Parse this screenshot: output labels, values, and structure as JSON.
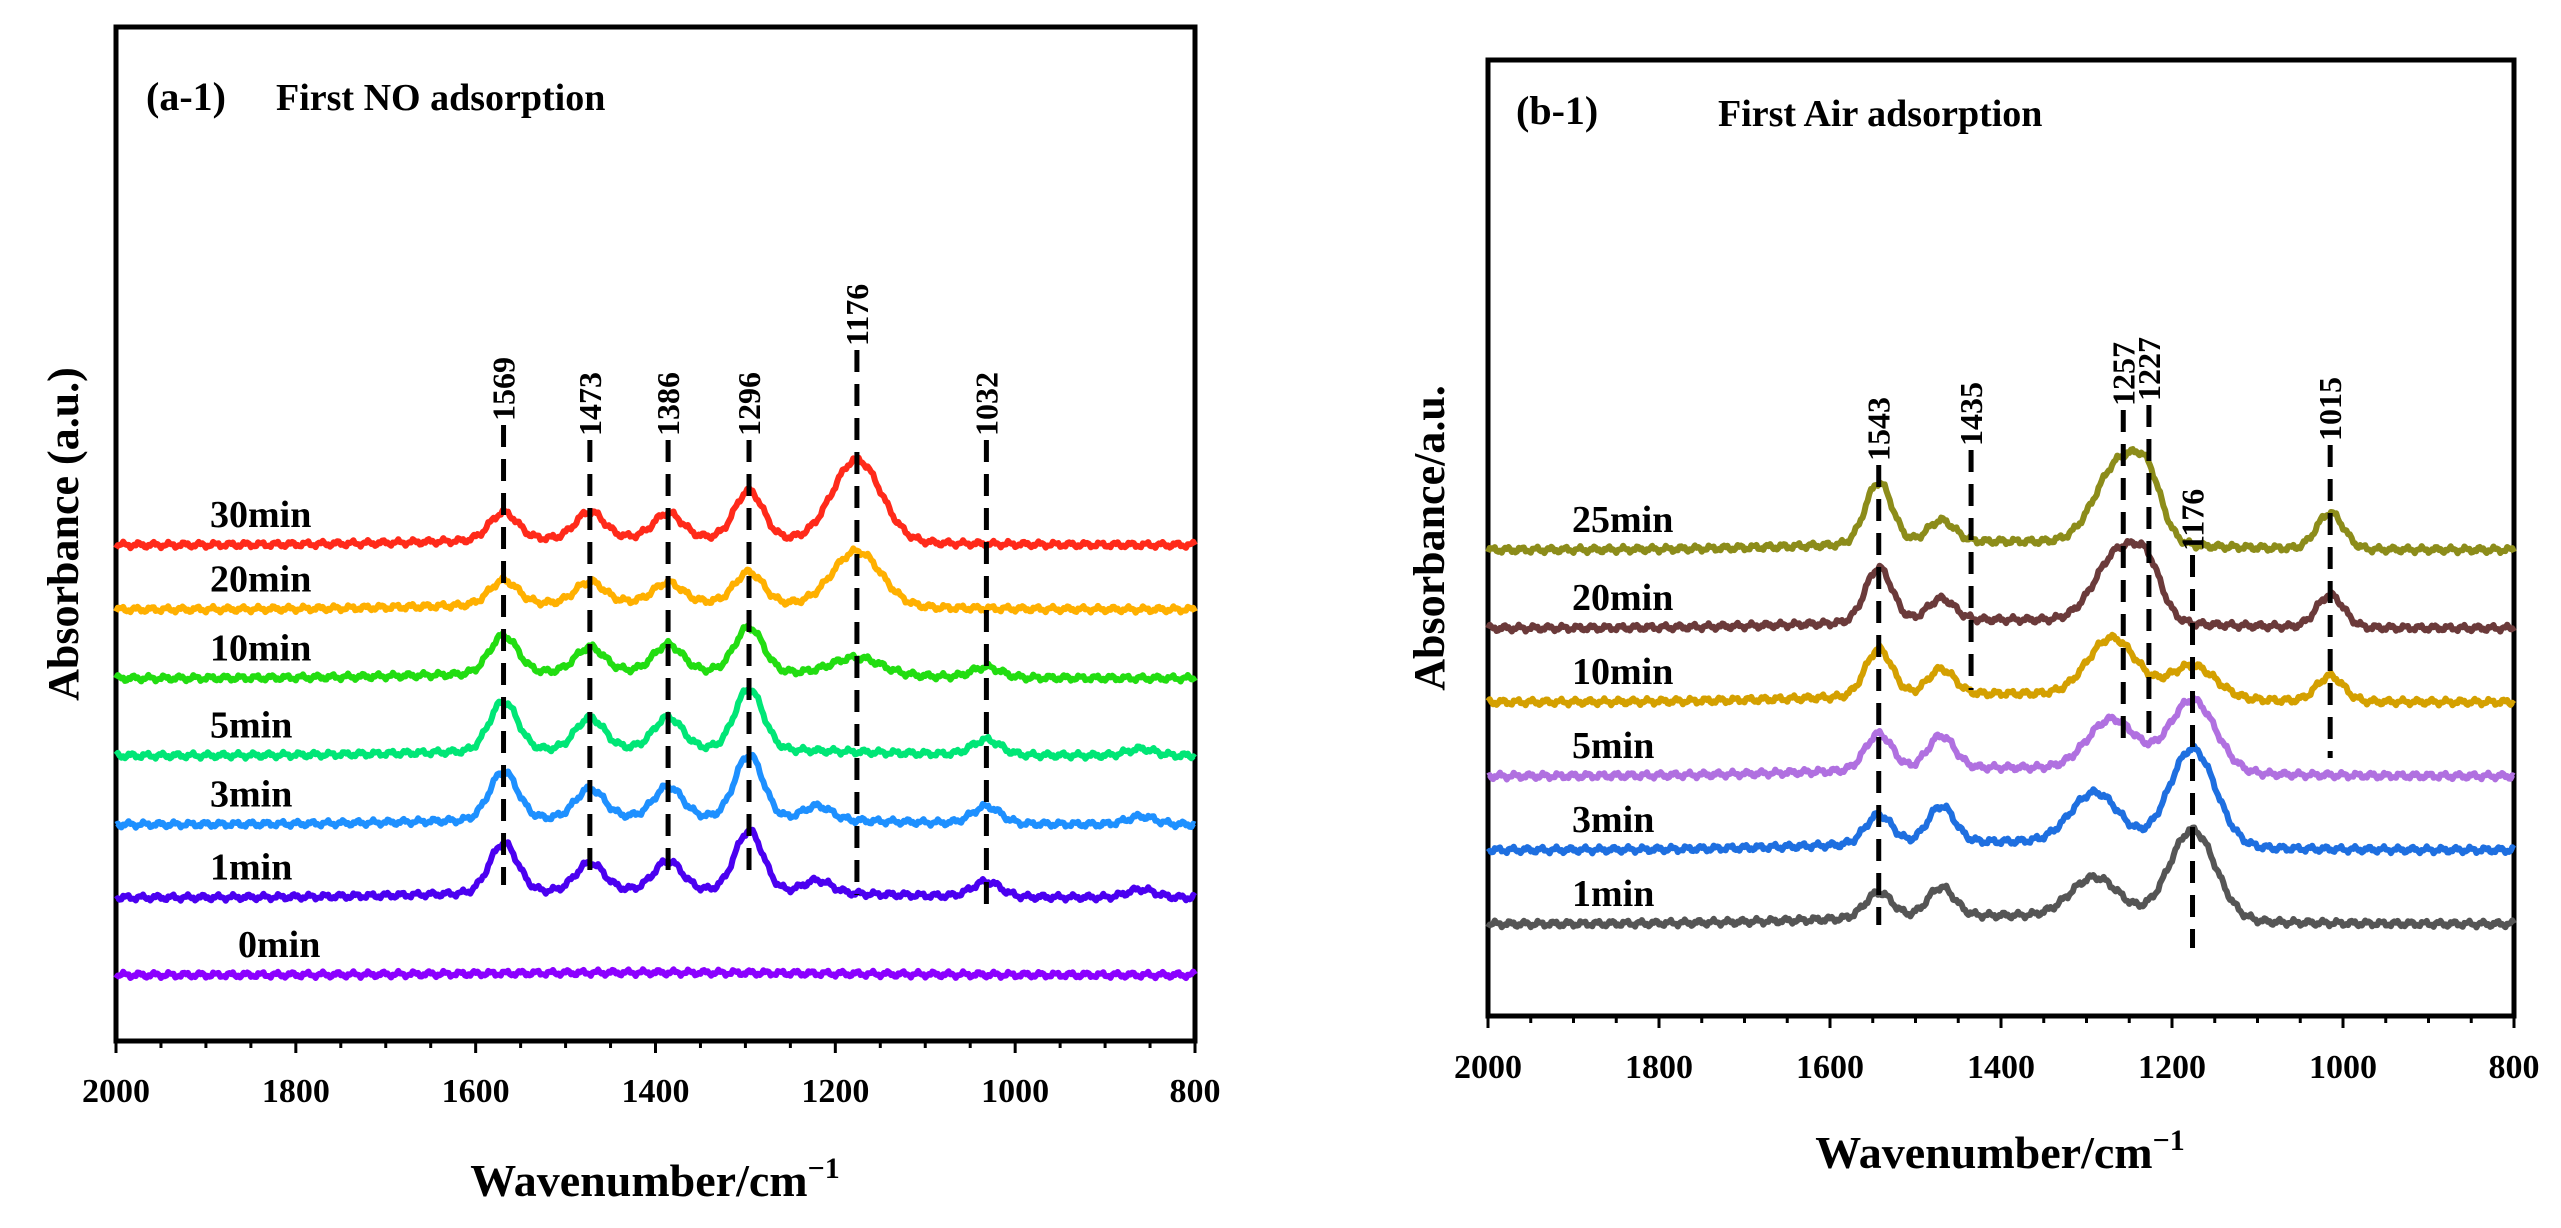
{
  "chart_data": [
    {
      "type": "line",
      "panel": "a-1",
      "panel_label": "(a-1)",
      "title": "First NO adsorption",
      "xlabel": "Wavenumber/cm",
      "xlabel_sup": "−1",
      "ylabel": "Absorbance (a.u.)",
      "xlim": [
        2000,
        800
      ],
      "xticks": [
        "2000",
        "1800",
        "1600",
        "1400",
        "1200",
        "1000",
        "800"
      ],
      "grid": false,
      "legend": "inline labels",
      "peak_lines": [
        {
          "label": "1569",
          "wavenumber": 1569
        },
        {
          "label": "1473",
          "wavenumber": 1473
        },
        {
          "label": "1386",
          "wavenumber": 1386
        },
        {
          "label": "1296",
          "wavenumber": 1296
        },
        {
          "label": "1176",
          "wavenumber": 1176
        },
        {
          "label": "1032",
          "wavenumber": 1032
        }
      ],
      "series": [
        {
          "name": "0min",
          "color": "#8B00FF",
          "baseline": 0.0,
          "peaks": []
        },
        {
          "name": "1min",
          "color": "#4B00F0",
          "baseline": 0.9,
          "peaks": [
            {
              "x": 1569,
              "h": 0.72
            },
            {
              "x": 1473,
              "h": 0.4
            },
            {
              "x": 1386,
              "h": 0.42
            },
            {
              "x": 1296,
              "h": 0.88
            },
            {
              "x": 1220,
              "h": 0.18
            },
            {
              "x": 1032,
              "h": 0.22
            },
            {
              "x": 860,
              "h": 0.12
            }
          ]
        },
        {
          "name": "3min",
          "color": "#1E90FF",
          "baseline": 1.75,
          "peaks": [
            {
              "x": 1569,
              "h": 0.7
            },
            {
              "x": 1473,
              "h": 0.42
            },
            {
              "x": 1386,
              "h": 0.44
            },
            {
              "x": 1296,
              "h": 0.92
            },
            {
              "x": 1220,
              "h": 0.2
            },
            {
              "x": 1032,
              "h": 0.25
            },
            {
              "x": 860,
              "h": 0.12
            }
          ]
        },
        {
          "name": "5min",
          "color": "#00E676",
          "baseline": 2.55,
          "peaks": [
            {
              "x": 1569,
              "h": 0.72
            },
            {
              "x": 1473,
              "h": 0.45
            },
            {
              "x": 1386,
              "h": 0.45
            },
            {
              "x": 1296,
              "h": 0.88
            },
            {
              "x": 1032,
              "h": 0.22
            },
            {
              "x": 860,
              "h": 0.1
            }
          ]
        },
        {
          "name": "10min",
          "color": "#22DD11",
          "baseline": 3.45,
          "peaks": [
            {
              "x": 1569,
              "h": 0.55
            },
            {
              "x": 1473,
              "h": 0.35
            },
            {
              "x": 1386,
              "h": 0.38
            },
            {
              "x": 1296,
              "h": 0.65
            },
            {
              "x": 1176,
              "h": 0.25
            },
            {
              "x": 1032,
              "h": 0.15
            }
          ]
        },
        {
          "name": "20min",
          "color": "#FFB000",
          "baseline": 4.25,
          "peaks": [
            {
              "x": 1569,
              "h": 0.35
            },
            {
              "x": 1473,
              "h": 0.3
            },
            {
              "x": 1386,
              "h": 0.28
            },
            {
              "x": 1296,
              "h": 0.45
            },
            {
              "x": 1176,
              "h": 0.8
            }
          ]
        },
        {
          "name": "30min",
          "color": "#FF2A1A",
          "baseline": 5.0,
          "peaks": [
            {
              "x": 1569,
              "h": 0.4
            },
            {
              "x": 1473,
              "h": 0.38
            },
            {
              "x": 1386,
              "h": 0.35
            },
            {
              "x": 1296,
              "h": 0.7
            },
            {
              "x": 1176,
              "h": 1.2
            }
          ]
        }
      ]
    },
    {
      "type": "line",
      "panel": "b-1",
      "panel_label": "(b-1)",
      "title": "First Air adsorption",
      "xlabel": "Wavenumber/cm",
      "xlabel_sup": "−1",
      "ylabel": "Absorbance/a.u.",
      "xlim": [
        2000,
        800
      ],
      "xticks": [
        "2000",
        "1800",
        "1600",
        "1400",
        "1200",
        "1000",
        "800"
      ],
      "grid": false,
      "legend": "inline labels",
      "peak_lines": [
        {
          "label": "1543",
          "wavenumber": 1543
        },
        {
          "label": "1435",
          "wavenumber": 1435
        },
        {
          "label": "1257",
          "wavenumber": 1257
        },
        {
          "label": "1227",
          "wavenumber": 1227
        },
        {
          "label": "1176",
          "wavenumber": 1176
        },
        {
          "label": "1015",
          "wavenumber": 1015
        }
      ],
      "series": [
        {
          "name": "1min",
          "color": "#555555",
          "baseline": 0.0,
          "peaks": [
            {
              "x": 1543,
              "h": 0.35
            },
            {
              "x": 1470,
              "h": 0.4
            },
            {
              "x": 1290,
              "h": 0.55
            },
            {
              "x": 1176,
              "h": 1.25
            }
          ]
        },
        {
          "name": "3min",
          "color": "#1E6FE0",
          "baseline": 0.85,
          "peaks": [
            {
              "x": 1543,
              "h": 0.4
            },
            {
              "x": 1470,
              "h": 0.5
            },
            {
              "x": 1290,
              "h": 0.7
            },
            {
              "x": 1176,
              "h": 1.35
            }
          ]
        },
        {
          "name": "5min",
          "color": "#B070E0",
          "baseline": 1.7,
          "peaks": [
            {
              "x": 1543,
              "h": 0.5
            },
            {
              "x": 1470,
              "h": 0.45
            },
            {
              "x": 1270,
              "h": 0.7
            },
            {
              "x": 1176,
              "h": 1.0
            }
          ]
        },
        {
          "name": "10min",
          "color": "#D4A000",
          "baseline": 2.55,
          "peaks": [
            {
              "x": 1543,
              "h": 0.65
            },
            {
              "x": 1470,
              "h": 0.35
            },
            {
              "x": 1270,
              "h": 0.8
            },
            {
              "x": 1176,
              "h": 0.45
            },
            {
              "x": 1015,
              "h": 0.35
            }
          ]
        },
        {
          "name": "20min",
          "color": "#6B3A3A",
          "baseline": 3.4,
          "peaks": [
            {
              "x": 1543,
              "h": 0.75
            },
            {
              "x": 1470,
              "h": 0.3
            },
            {
              "x": 1260,
              "h": 1.0
            },
            {
              "x": 1227,
              "h": 0.45
            },
            {
              "x": 1015,
              "h": 0.45
            }
          ]
        },
        {
          "name": "25min",
          "color": "#8C8C1A",
          "baseline": 4.3,
          "peaks": [
            {
              "x": 1543,
              "h": 0.85
            },
            {
              "x": 1470,
              "h": 0.3
            },
            {
              "x": 1260,
              "h": 1.15
            },
            {
              "x": 1227,
              "h": 0.55
            },
            {
              "x": 1015,
              "h": 0.5
            }
          ]
        }
      ]
    }
  ]
}
